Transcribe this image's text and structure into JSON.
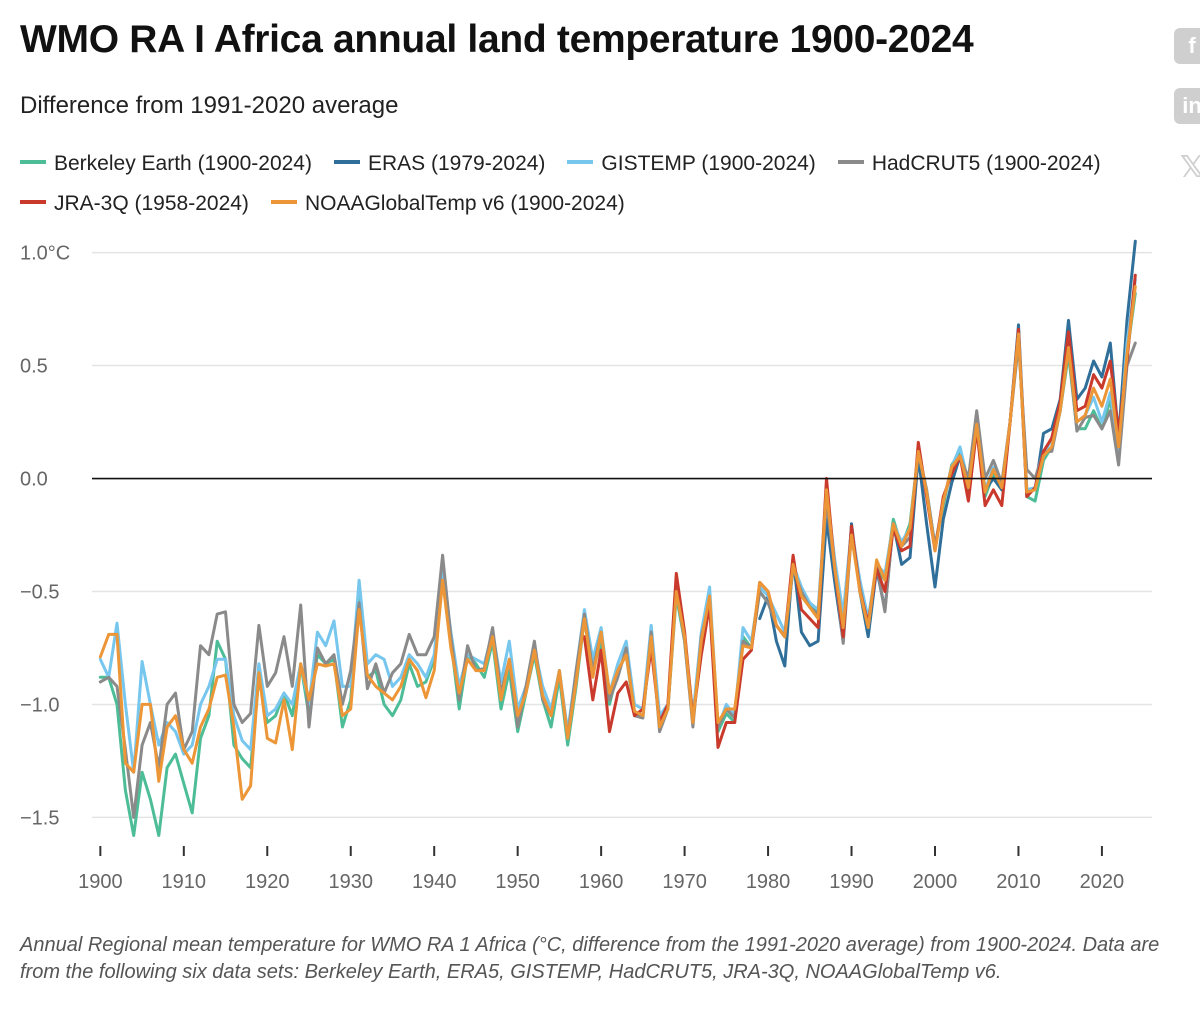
{
  "title": "WMO RA I Africa annual land temperature 1900-2024",
  "subtitle": "Difference from 1991-2020 average",
  "caption": "Annual Regional mean temperature for WMO RA 1 Africa (°C, difference from the 1991-2020 average) from 1900-2024. Data are from the following six data sets: Berkeley Earth, ERA5, GISTEMP, HadCRUT5, JRA-3Q, NOAAGlobalTemp v6.",
  "social": {
    "facebook_icon": "facebook-icon",
    "linkedin_icon": "linkedin-icon",
    "x_icon": "x-icon"
  },
  "chart_data": {
    "type": "line",
    "title": "WMO RA I Africa annual land temperature 1900-2024",
    "xlabel": "",
    "ylabel": "",
    "xlim": [
      1899,
      2026
    ],
    "ylim": [
      -1.6,
      1.1
    ],
    "x_ticks": [
      1900,
      1910,
      1920,
      1930,
      1940,
      1950,
      1960,
      1970,
      1980,
      1990,
      2000,
      2010,
      2020
    ],
    "y_ticks": [
      1.0,
      0.5,
      0.0,
      -0.5,
      -1.0,
      -1.5
    ],
    "y_tick_labels": [
      "1.0°C",
      "0.5",
      "0.0",
      "−0.5",
      "−1.0",
      "−1.5"
    ],
    "grid": true,
    "legend_position": "top",
    "series": [
      {
        "name": "Berkeley Earth (1900-2024)",
        "color": "#4dbd98",
        "start": 1900,
        "values": [
          -0.88,
          -0.88,
          -1.0,
          -1.38,
          -1.58,
          -1.3,
          -1.42,
          -1.58,
          -1.28,
          -1.22,
          -1.35,
          -1.48,
          -1.15,
          -1.05,
          -0.72,
          -0.8,
          -1.18,
          -1.24,
          -1.28,
          -0.88,
          -1.08,
          -1.05,
          -0.95,
          -1.05,
          -0.82,
          -1.05,
          -0.78,
          -0.82,
          -0.8,
          -1.1,
          -0.98,
          -0.52,
          -0.88,
          -0.85,
          -1.0,
          -1.05,
          -0.98,
          -0.82,
          -0.92,
          -0.9,
          -0.8,
          -0.4,
          -0.72,
          -1.02,
          -0.78,
          -0.82,
          -0.88,
          -0.72,
          -1.02,
          -0.85,
          -1.12,
          -0.95,
          -0.78,
          -0.98,
          -1.1,
          -0.88,
          -1.18,
          -0.92,
          -0.62,
          -0.85,
          -0.72,
          -1.0,
          -0.85,
          -0.78,
          -1.05,
          -1.05,
          -0.7,
          -1.08,
          -1.02,
          -0.52,
          -0.72,
          -1.08,
          -0.72,
          -0.55,
          -1.12,
          -1.04,
          -1.08,
          -0.7,
          -0.75,
          -0.5,
          -0.55,
          -0.65,
          -0.7,
          -0.4,
          -0.52,
          -0.55,
          -0.6,
          -0.08,
          -0.4,
          -0.6,
          -0.25,
          -0.48,
          -0.65,
          -0.4,
          -0.45,
          -0.18,
          -0.3,
          -0.2,
          0.12,
          -0.05,
          -0.3,
          -0.12,
          0.06,
          0.12,
          -0.05,
          0.25,
          -0.08,
          0.02,
          -0.05,
          0.25,
          0.65,
          -0.08,
          -0.1,
          0.08,
          0.14,
          0.3,
          0.55,
          0.22,
          0.22,
          0.3,
          0.22,
          0.35,
          0.1,
          0.55,
          0.82
        ]
      },
      {
        "name": "ERAS (1979-2024)",
        "color": "#2f6f99",
        "start": 1979,
        "values": [
          -0.62,
          -0.52,
          -0.72,
          -0.83,
          -0.35,
          -0.68,
          -0.74,
          -0.72,
          -0.18,
          -0.46,
          -0.72,
          -0.2,
          -0.5,
          -0.7,
          -0.4,
          -0.58,
          -0.2,
          -0.38,
          -0.35,
          0.1,
          -0.2,
          -0.48,
          -0.18,
          -0.02,
          0.1,
          0.0,
          0.22,
          -0.05,
          0.0,
          -0.05,
          0.25,
          0.68,
          -0.05,
          -0.05,
          0.2,
          0.22,
          0.35,
          0.7,
          0.35,
          0.4,
          0.52,
          0.45,
          0.6,
          0.18,
          0.7,
          1.05
        ]
      },
      {
        "name": "GISTEMP (1900-2024)",
        "color": "#76c6ee",
        "start": 1900,
        "values": [
          -0.8,
          -0.88,
          -0.64,
          -1.0,
          -1.3,
          -0.81,
          -1.0,
          -1.18,
          -1.08,
          -1.12,
          -1.22,
          -1.18,
          -1.0,
          -0.92,
          -0.8,
          -0.8,
          -1.05,
          -1.16,
          -1.2,
          -0.82,
          -1.05,
          -1.02,
          -0.95,
          -1.0,
          -0.82,
          -1.0,
          -0.68,
          -0.74,
          -0.63,
          -0.92,
          -0.92,
          -0.45,
          -0.82,
          -0.78,
          -0.8,
          -0.92,
          -0.88,
          -0.78,
          -0.82,
          -0.88,
          -0.78,
          -0.4,
          -0.68,
          -0.92,
          -0.78,
          -0.8,
          -0.82,
          -0.68,
          -0.9,
          -0.72,
          -1.02,
          -0.92,
          -0.75,
          -0.92,
          -1.02,
          -0.85,
          -1.12,
          -0.85,
          -0.58,
          -0.8,
          -0.66,
          -0.95,
          -0.82,
          -0.72,
          -1.0,
          -1.02,
          -0.65,
          -1.05,
          -1.0,
          -0.5,
          -0.7,
          -1.05,
          -0.68,
          -0.48,
          -1.1,
          -1.0,
          -1.05,
          -0.66,
          -0.72,
          -0.48,
          -0.52,
          -0.6,
          -0.68,
          -0.38,
          -0.48,
          -0.55,
          -0.58,
          -0.05,
          -0.36,
          -0.6,
          -0.22,
          -0.45,
          -0.62,
          -0.38,
          -0.42,
          -0.2,
          -0.28,
          -0.22,
          0.12,
          -0.05,
          -0.3,
          -0.1,
          0.05,
          0.14,
          -0.02,
          0.26,
          -0.05,
          0.05,
          -0.02,
          0.25,
          0.65,
          -0.05,
          -0.04,
          0.1,
          0.18,
          0.32,
          0.6,
          0.25,
          0.28,
          0.36,
          0.25,
          0.38,
          0.12,
          0.6,
          0.88
        ]
      },
      {
        "name": "HadCRUT5 (1900-2024)",
        "color": "#8a8a8a",
        "start": 1900,
        "values": [
          -0.9,
          -0.88,
          -0.92,
          -1.2,
          -1.5,
          -1.18,
          -1.08,
          -1.28,
          -1.0,
          -0.95,
          -1.2,
          -1.12,
          -0.74,
          -0.78,
          -0.6,
          -0.59,
          -1.0,
          -1.08,
          -1.04,
          -0.65,
          -0.92,
          -0.86,
          -0.7,
          -0.92,
          -0.56,
          -1.1,
          -0.75,
          -0.82,
          -0.78,
          -1.0,
          -0.85,
          -0.55,
          -0.93,
          -0.82,
          -0.95,
          -0.86,
          -0.82,
          -0.69,
          -0.78,
          -0.78,
          -0.7,
          -0.34,
          -0.7,
          -0.98,
          -0.74,
          -0.85,
          -0.84,
          -0.66,
          -0.95,
          -0.8,
          -1.1,
          -0.92,
          -0.72,
          -0.98,
          -1.05,
          -0.85,
          -1.15,
          -0.85,
          -0.6,
          -0.85,
          -0.68,
          -0.98,
          -0.88,
          -0.75,
          -1.05,
          -1.06,
          -0.68,
          -1.12,
          -1.02,
          -0.48,
          -0.72,
          -1.1,
          -0.7,
          -0.55,
          -1.1,
          -1.02,
          -1.06,
          -0.72,
          -0.75,
          -0.5,
          -0.55,
          -0.65,
          -0.7,
          -0.4,
          -0.5,
          -0.57,
          -0.6,
          -0.1,
          -0.4,
          -0.73,
          -0.24,
          -0.48,
          -0.66,
          -0.38,
          -0.59,
          -0.2,
          -0.3,
          -0.26,
          0.12,
          -0.05,
          -0.3,
          -0.1,
          0.05,
          0.1,
          0.0,
          0.3,
          0.0,
          0.08,
          -0.02,
          0.25,
          0.6,
          0.04,
          0.0,
          0.12,
          0.12,
          0.3,
          0.58,
          0.21,
          0.27,
          0.28,
          0.22,
          0.3,
          0.06,
          0.5,
          0.6
        ]
      },
      {
        "name": "JRA-3Q (1958-2024)",
        "color": "#c93a2c",
        "start": 1958,
        "values": [
          -0.7,
          -0.98,
          -0.76,
          -1.12,
          -0.95,
          -0.9,
          -1.05,
          -1.02,
          -0.75,
          -1.08,
          -1.0,
          -0.42,
          -0.68,
          -1.06,
          -0.78,
          -0.56,
          -1.19,
          -1.08,
          -1.08,
          -0.8,
          -0.76,
          -0.46,
          -0.5,
          -0.65,
          -0.7,
          -0.34,
          -0.58,
          -0.62,
          -0.66,
          0.0,
          -0.4,
          -0.7,
          -0.21,
          -0.5,
          -0.64,
          -0.4,
          -0.5,
          -0.22,
          -0.32,
          -0.3,
          0.16,
          -0.08,
          -0.32,
          -0.08,
          0.02,
          0.1,
          -0.1,
          0.22,
          -0.12,
          -0.05,
          -0.12,
          0.25,
          0.66,
          -0.08,
          -0.04,
          0.12,
          0.18,
          0.34,
          0.65,
          0.3,
          0.32,
          0.46,
          0.4,
          0.52,
          0.2,
          0.52,
          0.9
        ]
      },
      {
        "name": "NOAAGlobalTemp v6 (1900-2024)",
        "color": "#ec9637",
        "start": 1900,
        "values": [
          -0.79,
          -0.69,
          -0.69,
          -1.26,
          -1.3,
          -1.0,
          -1.0,
          -1.34,
          -1.1,
          -1.05,
          -1.2,
          -1.26,
          -1.1,
          -1.02,
          -0.88,
          -0.87,
          -1.1,
          -1.42,
          -1.36,
          -0.86,
          -1.15,
          -1.17,
          -0.98,
          -1.2,
          -0.82,
          -0.98,
          -0.82,
          -0.83,
          -0.82,
          -1.05,
          -1.02,
          -0.58,
          -0.87,
          -0.92,
          -0.95,
          -0.98,
          -0.92,
          -0.8,
          -0.85,
          -0.97,
          -0.85,
          -0.45,
          -0.75,
          -0.95,
          -0.8,
          -0.85,
          -0.85,
          -0.7,
          -0.98,
          -0.8,
          -1.05,
          -0.95,
          -0.76,
          -0.96,
          -1.05,
          -0.85,
          -1.15,
          -0.9,
          -0.62,
          -0.88,
          -0.68,
          -0.95,
          -0.85,
          -0.78,
          -1.03,
          -1.05,
          -0.7,
          -1.1,
          -1.02,
          -0.5,
          -0.7,
          -1.08,
          -0.72,
          -0.52,
          -1.08,
          -1.02,
          -1.02,
          -0.74,
          -0.75,
          -0.46,
          -0.5,
          -0.65,
          -0.7,
          -0.38,
          -0.52,
          -0.57,
          -0.62,
          -0.05,
          -0.4,
          -0.66,
          -0.25,
          -0.5,
          -0.66,
          -0.36,
          -0.45,
          -0.2,
          -0.3,
          -0.22,
          0.12,
          -0.06,
          -0.32,
          -0.1,
          0.05,
          0.1,
          -0.04,
          0.24,
          -0.06,
          0.04,
          -0.04,
          0.25,
          0.64,
          -0.06,
          -0.05,
          0.1,
          0.14,
          0.3,
          0.58,
          0.25,
          0.28,
          0.4,
          0.32,
          0.44,
          0.14,
          0.55,
          0.85
        ]
      }
    ]
  }
}
